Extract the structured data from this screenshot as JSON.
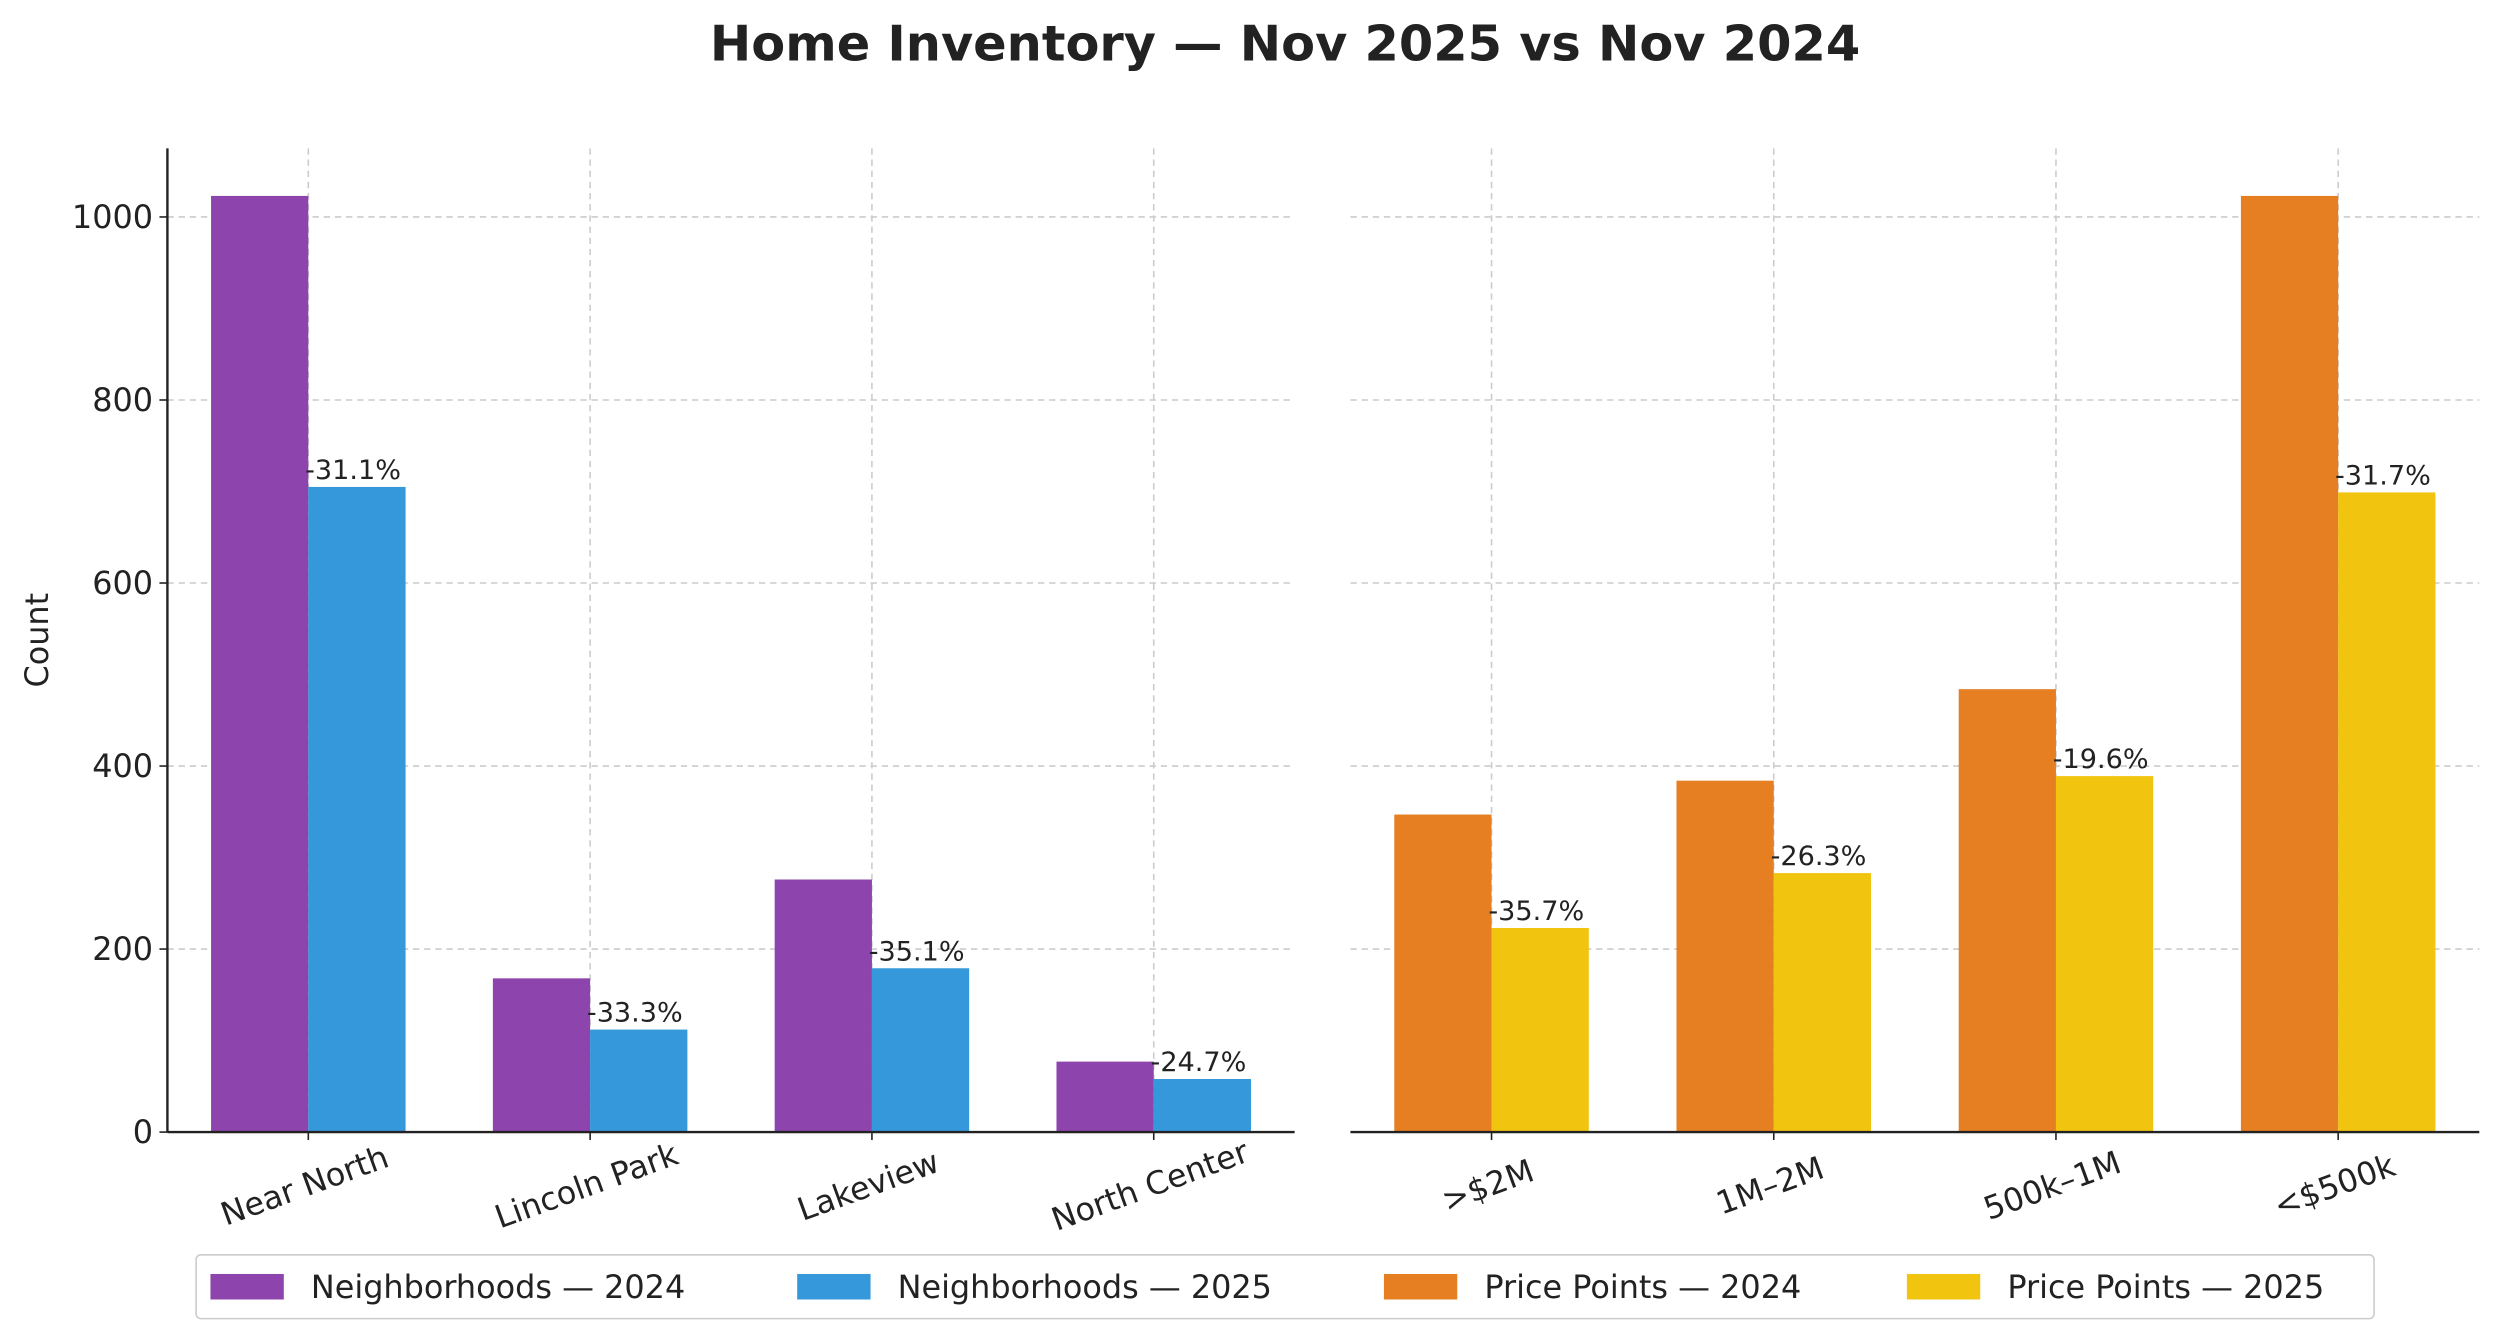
{
  "title": "Home Inventory — Nov 2025 vs Nov 2024",
  "chart_data": [
    {
      "type": "bar",
      "ylabel": "Count",
      "ylim": [
        0,
        1075
      ],
      "yticks": [
        0,
        200,
        400,
        600,
        800,
        1000
      ],
      "grid": true,
      "categories": [
        "Near North",
        "Lincoln Park",
        "Lakeview",
        "North Center"
      ],
      "series": [
        {
          "name": "Neighborhoods — 2024",
          "color": "#8e44ad",
          "values": [
            1023,
            168,
            276,
            77
          ]
        },
        {
          "name": "Neighborhoods — 2025",
          "color": "#3498db",
          "values": [
            705,
            112,
            179,
            58
          ]
        }
      ],
      "change_labels": [
        "-31.1%",
        "-33.3%",
        "-35.1%",
        "-24.7%"
      ]
    },
    {
      "type": "bar",
      "ylim": [
        0,
        1075
      ],
      "grid": true,
      "categories": [
        ">$2M",
        "1M–2M",
        "500k–1M",
        "<$500k"
      ],
      "series": [
        {
          "name": "Price Points — 2024",
          "color": "#e67e22",
          "values": [
            347,
            384,
            484,
            1023
          ]
        },
        {
          "name": "Price Points — 2025",
          "color": "#f1c40f",
          "values": [
            223,
            283,
            389,
            699
          ]
        }
      ],
      "change_labels": [
        "-35.7%",
        "-26.3%",
        "-19.6%",
        "-31.7%"
      ]
    }
  ]
}
